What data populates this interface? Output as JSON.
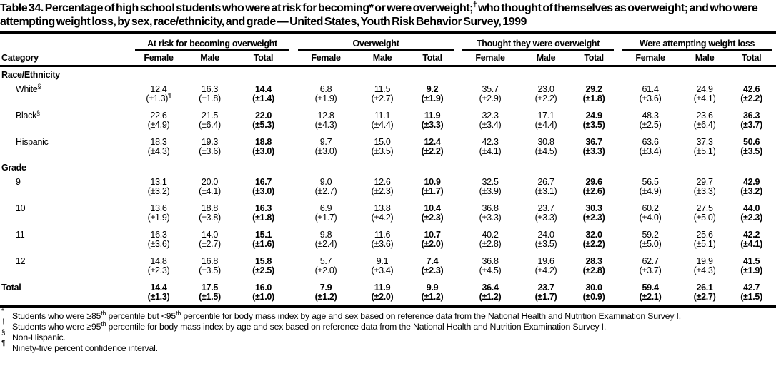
{
  "title_segments": [
    {
      "t": "Table 34. Percentage of high school students who were at risk for becoming"
    },
    {
      "t": "*",
      "sup": false
    },
    {
      "t": " or were overweight;"
    },
    {
      "t": "†",
      "sup": true
    },
    {
      "t": " who thought of themselves as overweight; and who were attempting weight loss, by sex, race/ethnicity, and grade — United States, Youth Risk Behavior Survey, 1999"
    }
  ],
  "table": {
    "category_label": "Category",
    "groups": [
      {
        "label": "At risk for becoming overweight",
        "cols": [
          "Female",
          "Male",
          "Total"
        ]
      },
      {
        "label": "Overweight",
        "cols": [
          "Female",
          "Male",
          "Total"
        ]
      },
      {
        "label": "Thought they were overweight",
        "cols": [
          "Female",
          "Male",
          "Total"
        ]
      },
      {
        "label": "Were attempting weight loss",
        "cols": [
          "Female",
          "Male",
          "Total"
        ]
      }
    ],
    "rows": [
      {
        "type": "section",
        "label": "Race/Ethnicity"
      },
      {
        "type": "data",
        "label": "White",
        "label_sup": "§",
        "values": [
          "12.4",
          "16.3",
          "14.4",
          "6.8",
          "11.5",
          "9.2",
          "35.7",
          "23.0",
          "29.2",
          "61.4",
          "24.9",
          "42.6"
        ],
        "ci": [
          "(±1.3)",
          "(±1.8)",
          "(±1.4)",
          "(±1.9)",
          "(±2.7)",
          "(±1.9)",
          "(±2.9)",
          "(±2.2)",
          "(±1.8)",
          "(±3.6)",
          "(±4.1)",
          "(±2.2)"
        ],
        "ci_sups": [
          "¶",
          "",
          "",
          "",
          "",
          "",
          "",
          "",
          "",
          "",
          "",
          ""
        ]
      },
      {
        "type": "data",
        "label": "Black",
        "label_sup": "§",
        "values": [
          "22.6",
          "21.5",
          "22.0",
          "12.8",
          "11.1",
          "11.9",
          "32.3",
          "17.1",
          "24.9",
          "48.3",
          "23.6",
          "36.3"
        ],
        "ci": [
          "(±4.9)",
          "(±6.4)",
          "(±5.3)",
          "(±4.3)",
          "(±4.4)",
          "(±3.3)",
          "(±3.4)",
          "(±4.4)",
          "(±3.5)",
          "(±2.5)",
          "(±6.4)",
          "(±3.7)"
        ]
      },
      {
        "type": "data",
        "label": "Hispanic",
        "values": [
          "18.3",
          "19.3",
          "18.8",
          "9.7",
          "15.0",
          "12.4",
          "42.3",
          "30.8",
          "36.7",
          "63.6",
          "37.3",
          "50.6"
        ],
        "ci": [
          "(±4.3)",
          "(±3.6)",
          "(±3.0)",
          "(±3.0)",
          "(±3.5)",
          "(±2.2)",
          "(±4.1)",
          "(±4.5)",
          "(±3.3)",
          "(±3.4)",
          "(±5.1)",
          "(±3.5)"
        ]
      },
      {
        "type": "section",
        "label": "Grade"
      },
      {
        "type": "data",
        "label": "9",
        "values": [
          "13.1",
          "20.0",
          "16.7",
          "9.0",
          "12.6",
          "10.9",
          "32.5",
          "26.7",
          "29.6",
          "56.5",
          "29.7",
          "42.9"
        ],
        "ci": [
          "(±3.2)",
          "(±4.1)",
          "(±3.0)",
          "(±2.7)",
          "(±2.3)",
          "(±1.7)",
          "(±3.9)",
          "(±3.1)",
          "(±2.6)",
          "(±4.9)",
          "(±3.3)",
          "(±3.2)"
        ]
      },
      {
        "type": "data",
        "label": "10",
        "values": [
          "13.6",
          "18.8",
          "16.3",
          "6.9",
          "13.8",
          "10.4",
          "36.8",
          "23.7",
          "30.3",
          "60.2",
          "27.5",
          "44.0"
        ],
        "ci": [
          "(±1.9)",
          "(±3.8)",
          "(±1.8)",
          "(±1.7)",
          "(±4.2)",
          "(±2.3)",
          "(±3.3)",
          "(±3.3)",
          "(±2.3)",
          "(±4.0)",
          "(±5.0)",
          "(±2.3)"
        ]
      },
      {
        "type": "data",
        "label": "11",
        "values": [
          "16.3",
          "14.0",
          "15.1",
          "9.8",
          "11.6",
          "10.7",
          "40.2",
          "24.0",
          "32.0",
          "59.2",
          "25.6",
          "42.2"
        ],
        "ci": [
          "(±3.6)",
          "(±2.7)",
          "(±1.6)",
          "(±2.4)",
          "(±3.6)",
          "(±2.0)",
          "(±2.8)",
          "(±3.5)",
          "(±2.2)",
          "(±5.0)",
          "(±5.1)",
          "(±4.1)"
        ]
      },
      {
        "type": "data",
        "label": "12",
        "values": [
          "14.8",
          "16.8",
          "15.8",
          "5.7",
          "9.1",
          "7.4",
          "36.8",
          "19.6",
          "28.3",
          "62.7",
          "19.9",
          "41.5"
        ],
        "ci": [
          "(±2.3)",
          "(±3.5)",
          "(±2.5)",
          "(±2.0)",
          "(±3.4)",
          "(±2.3)",
          "(±4.5)",
          "(±4.2)",
          "(±2.8)",
          "(±3.7)",
          "(±4.3)",
          "(±1.9)"
        ]
      },
      {
        "type": "total",
        "label": "Total",
        "values": [
          "14.4",
          "17.5",
          "16.0",
          "7.9",
          "11.9",
          "9.9",
          "36.4",
          "23.7",
          "30.0",
          "59.4",
          "26.1",
          "42.7"
        ],
        "ci": [
          "(±1.3)",
          "(±1.5)",
          "(±1.0)",
          "(±1.2)",
          "(±2.0)",
          "(±1.2)",
          "(±1.2)",
          "(±1.7)",
          "(±0.9)",
          "(±2.1)",
          "(±2.7)",
          "(±1.5)"
        ]
      }
    ]
  },
  "footnotes": [
    {
      "marker": "*",
      "segments": [
        {
          "t": "Students who were ≥85"
        },
        {
          "t": "th",
          "sup": true
        },
        {
          "t": " percentile but <95"
        },
        {
          "t": "th",
          "sup": true
        },
        {
          "t": " percentile for body mass index by age and sex based on reference data from the National Health and Nutrition Examination Survey I."
        }
      ]
    },
    {
      "marker": "†",
      "segments": [
        {
          "t": "Students who were ≥95"
        },
        {
          "t": "th",
          "sup": true
        },
        {
          "t": " percentile for body mass index by age and sex based on reference data from the National Health and Nutrition Examination Survey I."
        }
      ]
    },
    {
      "marker": "§",
      "segments": [
        {
          "t": "Non-Hispanic."
        }
      ]
    },
    {
      "marker": "¶",
      "segments": [
        {
          "t": "Ninety-five percent confidence interval."
        }
      ]
    }
  ]
}
